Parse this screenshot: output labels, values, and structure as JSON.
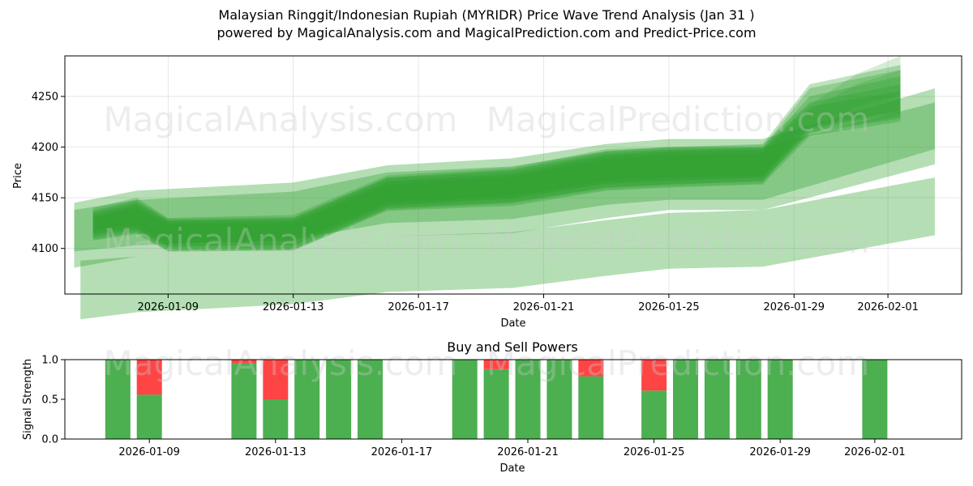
{
  "header": {
    "title_line1": "Malaysian Ringgit/Indonesian Rupiah (MYRIDR) Price Wave Trend Analysis (Jan 31 )",
    "title_line2": "powered by MagicalAnalysis.com and MagicalPrediction.com and Predict-Price.com"
  },
  "watermarks": {
    "left": "MagicalAnalysis.com",
    "right": "MagicalPrediction.com"
  },
  "colors": {
    "band": "#2ca02c",
    "buy": "#4caf50",
    "sell": "#ff4444",
    "grid": "#e0e0e0"
  },
  "chart_data": [
    {
      "type": "area",
      "title": "",
      "xlabel": "Date",
      "ylabel": "Price",
      "x_range": [
        "2026-01-06",
        "2026-02-03"
      ],
      "ylim": [
        4055,
        4290
      ],
      "y_ticks": [
        4100,
        4150,
        4200,
        4250
      ],
      "x_ticks": [
        "2026-01-09",
        "2026-01-13",
        "2026-01-17",
        "2026-01-21",
        "2026-01-25",
        "2026-01-29",
        "2026-02-01"
      ],
      "x_tick_days": [
        3,
        7,
        11,
        15,
        19,
        23,
        26
      ],
      "grid": true,
      "bands": [
        {
          "days": [
            0,
            2,
            7,
            10,
            14,
            17,
            19,
            22,
            27.5
          ],
          "upper": [
            4145,
            4157,
            4165,
            4182,
            4189,
            4203,
            4208,
            4208,
            4258
          ],
          "lower": [
            4081,
            4092,
            4100,
            4112,
            4115,
            4130,
            4138,
            4138,
            4183
          ],
          "opacity": 0.35
        },
        {
          "days": [
            0,
            2,
            7,
            10,
            14,
            17,
            19,
            22,
            27.5
          ],
          "upper": [
            4138,
            4148,
            4156,
            4175,
            4181,
            4196,
            4200,
            4200,
            4244
          ],
          "lower": [
            4097,
            4103,
            4109,
            4125,
            4129,
            4143,
            4148,
            4148,
            4198
          ],
          "opacity": 0.35
        },
        {
          "days": [
            0.2,
            2,
            7,
            10,
            14,
            17,
            19,
            22,
            27.5
          ],
          "upper": [
            4088,
            4092,
            4100,
            4112,
            4116,
            4128,
            4135,
            4138,
            4170
          ],
          "lower": [
            4030,
            4037,
            4045,
            4057,
            4061,
            4073,
            4080,
            4082,
            4113
          ],
          "opacity": 0.35
        },
        {
          "days": [
            0.6,
            2,
            3,
            7,
            10,
            14,
            17,
            19,
            22,
            23.5,
            26.4
          ],
          "upper": [
            4135,
            4145,
            4128,
            4130,
            4170,
            4178,
            4195,
            4198,
            4200,
            4258,
            4276
          ],
          "lower": [
            4112,
            4118,
            4100,
            4100,
            4140,
            4146,
            4160,
            4163,
            4166,
            4214,
            4228
          ],
          "opacity": 0.3
        },
        {
          "days": [
            0.6,
            2,
            3,
            7,
            10,
            14,
            17,
            19,
            22,
            23.5,
            26.4
          ],
          "upper": [
            4140,
            4150,
            4130,
            4133,
            4172,
            4180,
            4198,
            4200,
            4203,
            4262,
            4281
          ],
          "lower": [
            4108,
            4115,
            4097,
            4098,
            4137,
            4142,
            4157,
            4160,
            4163,
            4211,
            4225
          ],
          "opacity": 0.3
        },
        {
          "days": [
            0.6,
            2,
            3,
            7,
            10,
            14,
            17,
            19,
            22,
            23.5,
            26.4
          ],
          "upper": [
            4132,
            4142,
            4126,
            4127,
            4166,
            4173,
            4191,
            4195,
            4197,
            4244,
            4262
          ],
          "lower": [
            4115,
            4120,
            4102,
            4103,
            4142,
            4149,
            4164,
            4167,
            4170,
            4218,
            4234
          ],
          "opacity": 0.3
        },
        {
          "days": [
            0.6,
            2,
            3,
            7,
            10,
            14,
            17,
            19,
            22,
            23.5,
            26.4
          ],
          "upper": [
            4137,
            4147,
            4128,
            4130,
            4169,
            4176,
            4193,
            4197,
            4199,
            4250,
            4270
          ],
          "lower": [
            4110,
            4116,
            4098,
            4099,
            4139,
            4145,
            4160,
            4163,
            4167,
            4215,
            4230
          ],
          "opacity": 0.3
        },
        {
          "days": [
            0.6,
            2,
            3,
            7,
            10,
            14,
            17,
            19,
            22,
            23.5,
            26.4
          ],
          "upper": [
            4130,
            4140,
            4124,
            4125,
            4163,
            4171,
            4188,
            4192,
            4194,
            4240,
            4255
          ],
          "lower": [
            4118,
            4123,
            4105,
            4107,
            4145,
            4152,
            4167,
            4170,
            4172,
            4220,
            4236
          ],
          "opacity": 0.3
        },
        {
          "days": [
            0.6,
            2,
            3,
            7,
            10,
            14,
            17,
            19,
            22,
            23,
            25,
            26.4
          ],
          "upper": [
            4138,
            4148,
            4130,
            4131,
            4170,
            4178,
            4196,
            4200,
            4202,
            4232,
            4272,
            4290
          ],
          "lower": [
            4108,
            4114,
            4097,
            4098,
            4138,
            4144,
            4158,
            4161,
            4164,
            4203,
            4235,
            4250
          ],
          "opacity": 0.2
        },
        {
          "days": [
            0.6,
            2,
            3,
            7,
            10,
            14,
            17,
            19,
            22,
            23,
            25,
            26.4
          ],
          "upper": [
            4134,
            4144,
            4127,
            4128,
            4166,
            4174,
            4192,
            4196,
            4198,
            4228,
            4262,
            4276
          ],
          "lower": [
            4114,
            4119,
            4102,
            4103,
            4143,
            4150,
            4164,
            4167,
            4170,
            4210,
            4240,
            4252
          ],
          "opacity": 0.2
        }
      ]
    },
    {
      "type": "bar",
      "title": "Buy and Sell Powers",
      "xlabel": "Date",
      "ylabel": "Signal Strength",
      "ylim": [
        0,
        1.0
      ],
      "y_ticks": [
        "0.0",
        "0.5",
        "1.0"
      ],
      "x_ticks": [
        "2026-01-09",
        "2026-01-13",
        "2026-01-17",
        "2026-01-21",
        "2026-01-25",
        "2026-01-29",
        "2026-02-01"
      ],
      "x_tick_days": [
        3,
        7,
        11,
        15,
        19,
        23,
        26
      ],
      "bar_days": [
        2,
        3,
        6,
        7,
        8,
        9,
        10,
        13,
        14,
        15,
        16,
        17,
        19,
        20,
        21,
        22,
        23,
        26
      ],
      "series": [
        {
          "name": "Buy",
          "values": [
            1.0,
            0.56,
            0.95,
            0.5,
            1.0,
            1.0,
            1.0,
            1.0,
            0.88,
            1.0,
            1.0,
            0.79,
            0.61,
            1.0,
            1.0,
            1.0,
            1.0,
            1.0
          ]
        },
        {
          "name": "Sell",
          "values": [
            0.0,
            0.44,
            0.05,
            0.5,
            0.0,
            0.0,
            0.0,
            0.0,
            0.12,
            0.0,
            0.0,
            0.21,
            0.39,
            0.0,
            0.0,
            0.0,
            0.0,
            0.0
          ]
        }
      ]
    }
  ]
}
